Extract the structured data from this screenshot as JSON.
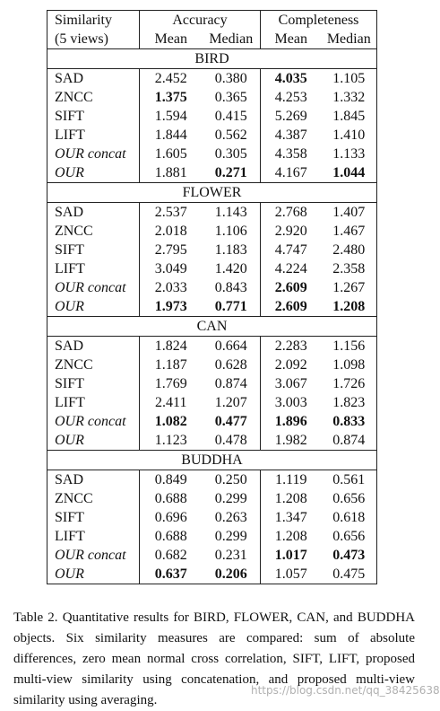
{
  "header": {
    "similarity": "Similarity",
    "views": "(5 views)",
    "accuracy": "Accuracy",
    "completeness": "Completeness",
    "columns": [
      "Mean",
      "Median",
      "Mean",
      "Median"
    ]
  },
  "sections": [
    {
      "name": "BIRD",
      "rows": [
        {
          "label": "SAD",
          "values": [
            "2.452",
            "0.380",
            "4.035",
            "1.105"
          ],
          "bold": [
            2
          ]
        },
        {
          "label": "ZNCC",
          "values": [
            "1.375",
            "0.365",
            "4.253",
            "1.332"
          ],
          "bold": [
            0
          ]
        },
        {
          "label": "SIFT",
          "values": [
            "1.594",
            "0.415",
            "5.269",
            "1.845"
          ]
        },
        {
          "label": "LIFT",
          "values": [
            "1.844",
            "0.562",
            "4.387",
            "1.410"
          ]
        },
        {
          "label": "OUR concat",
          "values": [
            "1.605",
            "0.305",
            "4.358",
            "1.133"
          ],
          "italic": true
        },
        {
          "label": "OUR",
          "values": [
            "1.881",
            "0.271",
            "4.167",
            "1.044"
          ],
          "bold": [
            1,
            3
          ],
          "italic": true
        }
      ]
    },
    {
      "name": "FLOWER",
      "rows": [
        {
          "label": "SAD",
          "values": [
            "2.537",
            "1.143",
            "2.768",
            "1.407"
          ]
        },
        {
          "label": "ZNCC",
          "values": [
            "2.018",
            "1.106",
            "2.920",
            "1.467"
          ]
        },
        {
          "label": "SIFT",
          "values": [
            "2.795",
            "1.183",
            "4.747",
            "2.480"
          ]
        },
        {
          "label": "LIFT",
          "values": [
            "3.049",
            "1.420",
            "4.224",
            "2.358"
          ]
        },
        {
          "label": "OUR concat",
          "values": [
            "2.033",
            "0.843",
            "2.609",
            "1.267"
          ],
          "bold": [
            2
          ],
          "italic": true
        },
        {
          "label": "OUR",
          "values": [
            "1.973",
            "0.771",
            "2.609",
            "1.208"
          ],
          "bold": [
            0,
            1,
            2,
            3
          ],
          "italic": true
        }
      ]
    },
    {
      "name": "CAN",
      "rows": [
        {
          "label": "SAD",
          "values": [
            "1.824",
            "0.664",
            "2.283",
            "1.156"
          ]
        },
        {
          "label": "ZNCC",
          "values": [
            "1.187",
            "0.628",
            "2.092",
            "1.098"
          ]
        },
        {
          "label": "SIFT",
          "values": [
            "1.769",
            "0.874",
            "3.067",
            "1.726"
          ]
        },
        {
          "label": "LIFT",
          "values": [
            "2.411",
            "1.207",
            "3.003",
            "1.823"
          ]
        },
        {
          "label": "OUR concat",
          "values": [
            "1.082",
            "0.477",
            "1.896",
            "0.833"
          ],
          "bold": [
            0,
            1,
            2,
            3
          ],
          "italic": true
        },
        {
          "label": "OUR",
          "values": [
            "1.123",
            "0.478",
            "1.982",
            "0.874"
          ],
          "italic": true
        }
      ]
    },
    {
      "name": "BUDDHA",
      "rows": [
        {
          "label": "SAD",
          "values": [
            "0.849",
            "0.250",
            "1.119",
            "0.561"
          ]
        },
        {
          "label": "ZNCC",
          "values": [
            "0.688",
            "0.299",
            "1.208",
            "0.656"
          ]
        },
        {
          "label": "SIFT",
          "values": [
            "0.696",
            "0.263",
            "1.347",
            "0.618"
          ]
        },
        {
          "label": "LIFT",
          "values": [
            "0.688",
            "0.299",
            "1.208",
            "0.656"
          ]
        },
        {
          "label": "OUR concat",
          "values": [
            "0.682",
            "0.231",
            "1.017",
            "0.473"
          ],
          "bold": [
            2,
            3
          ],
          "italic": true
        },
        {
          "label": "OUR",
          "values": [
            "0.637",
            "0.206",
            "1.057",
            "0.475"
          ],
          "bold": [
            0,
            1
          ],
          "italic": true
        }
      ]
    }
  ],
  "caption": "Table 2.  Quantitative results for BIRD, FLOWER, CAN, and BUDDHA objects. Six similarity measures are compared: sum of absolute differences, zero mean normal cross correlation, SIFT, LIFT, proposed multi-view similarity using concatenation, and proposed multi-view similarity using averaging.",
  "watermark": "https://blog.csdn.net/qq_38425638"
}
